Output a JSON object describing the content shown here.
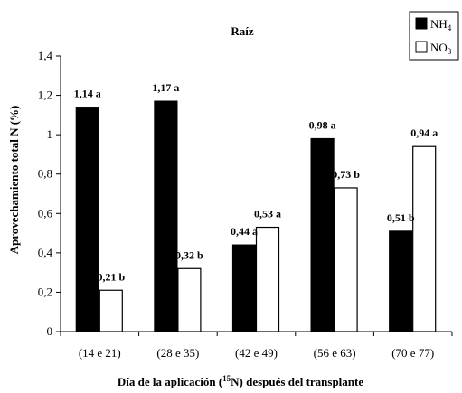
{
  "chart_data": {
    "type": "bar",
    "title": "Raíz",
    "xlabel": "Día de la aplicación (15N) después del transplante",
    "xlabel_parts": {
      "prefix": "Día de la aplicación (",
      "sup": "15",
      "suffix": "N) después del transplante"
    },
    "ylabel": "Aprovechamiento total N (%)",
    "categories": [
      "(14 e 21)",
      "(28 e 35)",
      "(42 e 49)",
      "(56 e 63)",
      "(70 e 77)"
    ],
    "ylim": [
      0,
      1.4
    ],
    "yticks": [
      "0",
      "0,2",
      "0,4",
      "0,6",
      "0,8",
      "1",
      "1,2",
      "1,4"
    ],
    "ytick_values": [
      0,
      0.2,
      0.4,
      0.6,
      0.8,
      1.0,
      1.2,
      1.4
    ],
    "grid": false,
    "legend_position": "top-right",
    "series": [
      {
        "name": "NH4",
        "name_parts": {
          "base": "NH",
          "sub": "4"
        },
        "color": "#000000",
        "values": [
          1.14,
          1.17,
          0.44,
          0.98,
          0.51
        ],
        "labels": [
          "1,14 a",
          "1,17 a",
          "0,44 a",
          "0,98 a",
          "0,51 b"
        ]
      },
      {
        "name": "NO3",
        "name_parts": {
          "base": "NO",
          "sub": "3"
        },
        "color": "#ffffff",
        "values": [
          0.21,
          0.32,
          0.53,
          0.73,
          0.94
        ],
        "labels": [
          "0,21 b",
          "0,32 b",
          "0,53 a",
          "0,73 b",
          "0,94 a"
        ]
      }
    ]
  }
}
